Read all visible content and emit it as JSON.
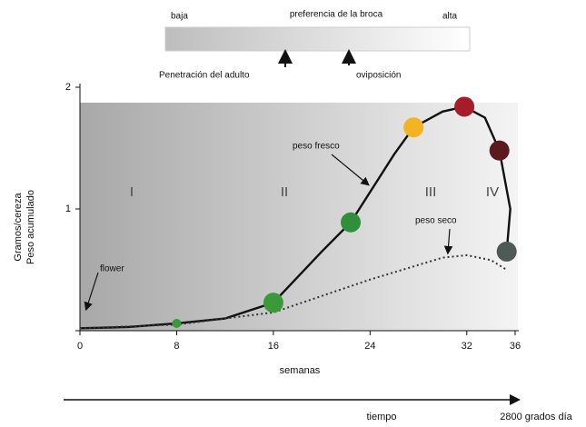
{
  "chart_data": {
    "type": "line",
    "top_labels": {
      "low": "baja",
      "middle": "preferencia de la broca",
      "high": "alta"
    },
    "events": [
      "Penetración del adulto",
      "oviposición"
    ],
    "y_label_lines": [
      "Gramos/cereza",
      "Peso acumulado"
    ],
    "x_label": "semanas",
    "time_label": "tiempo",
    "time_end_label": "2800 grados día",
    "flower_label": "flower",
    "stages": [
      "I",
      "II",
      "III",
      "IV"
    ],
    "xlim": [
      0,
      36
    ],
    "ylim": [
      0,
      2
    ],
    "xticks": [
      0,
      8,
      16,
      24,
      32,
      36
    ],
    "yticks": [
      0,
      1,
      2
    ],
    "series": [
      {
        "name": "peso fresco",
        "color": "#111111",
        "x": [
          0,
          4,
          8,
          12,
          16,
          20,
          22.4,
          26,
          27.6,
          30,
          31.8,
          33.5,
          34.7,
          35.6,
          35.3
        ],
        "values": [
          0.02,
          0.03,
          0.06,
          0.1,
          0.23,
          0.65,
          0.89,
          1.45,
          1.67,
          1.8,
          1.84,
          1.75,
          1.48,
          1.0,
          0.65
        ]
      },
      {
        "name": "peso seco",
        "color": "#333333",
        "x": [
          0,
          8,
          16,
          24,
          30,
          32,
          34,
          35.3
        ],
        "values": [
          0.02,
          0.05,
          0.15,
          0.42,
          0.6,
          0.62,
          0.58,
          0.5
        ]
      }
    ],
    "points": {
      "x": [
        8,
        16,
        22.4,
        27.6,
        31.8,
        34.7,
        35.3
      ],
      "values": [
        0.06,
        0.23,
        0.89,
        1.67,
        1.84,
        1.48,
        0.65
      ],
      "colors": [
        "#3a9a3a",
        "#3a9a3a",
        "#2f8f3a",
        "#f4b323",
        "#a51d2a",
        "#5a1a1e",
        "#4e5a55"
      ]
    }
  }
}
